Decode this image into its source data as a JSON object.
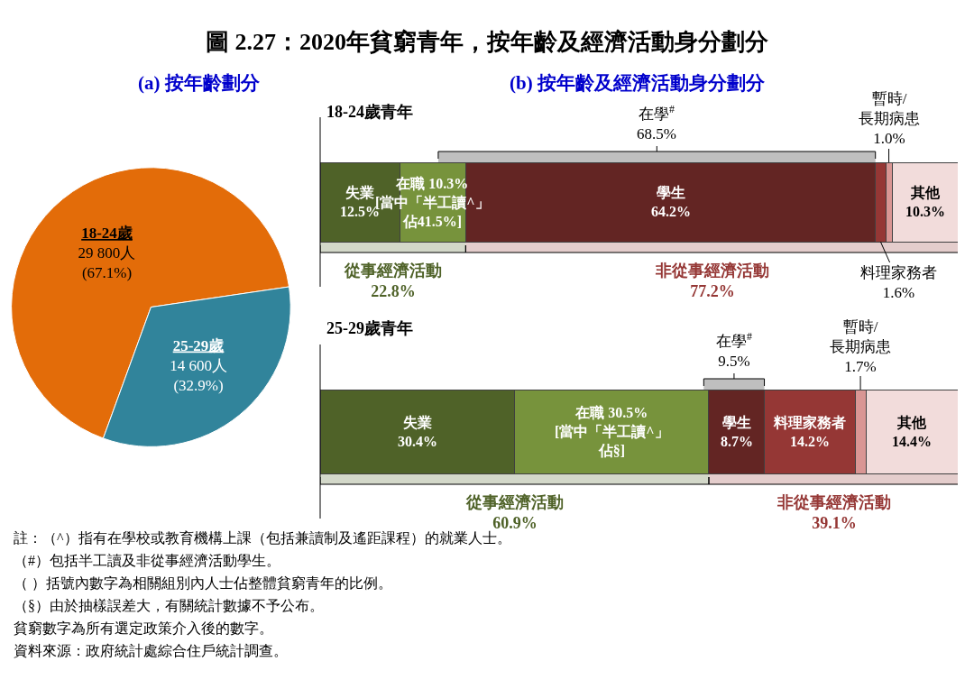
{
  "chart_data": [
    {
      "type": "pie",
      "title": "圖 2.27：2020年貧窮青年，按年齡及經濟活動身分劃分",
      "subtitle": "(a) 按年齡劃分",
      "categories": [
        "18-24歲",
        "25-29歲"
      ],
      "values": [
        29800,
        14600
      ],
      "colors": [
        "#e36c09",
        "#31849b"
      ],
      "value_labels": [
        "29 800人\n(67.1%)",
        "14 600人\n(32.9%)"
      ]
    },
    {
      "type": "bar",
      "orientation": "horizontal",
      "stacked": true,
      "subtitle": "(b) 按年齡及經濟活動身分劃分",
      "title": "18-24歲青年",
      "categories": [
        null
      ],
      "tick_labels": false,
      "series": [
        {
          "color": "#4f6228",
          "values": [
            12.5
          ],
          "value_labels": [
            "失業\n12.5%"
          ]
        },
        {
          "color": "#77933c",
          "values": [
            10.3
          ],
          "value_labels": [
            "在職 10.3%\n[當中「半工讀^」佔41.5%]"
          ]
        },
        {
          "color": "#632523",
          "values": [
            64.2
          ],
          "value_labels": [
            "學生\n64.2%"
          ]
        },
        {
          "color": "#953735",
          "values": [
            1.6
          ],
          "value_labels": [
            "料理家務者\n1.6%"
          ]
        },
        {
          "color": "#d99694",
          "values": [
            1.0
          ],
          "value_labels": [
            "暫時/\n長期病患\n1.0%"
          ]
        },
        {
          "color": "#f2dcdb",
          "values": [
            10.3
          ],
          "value_labels": [
            "其他\n10.3%"
          ]
        }
      ],
      "bands": [
        {
          "axis": "x",
          "from": 18.5,
          "to": 87.0,
          "label": "在學$^{#}$\n68.5%"
        },
        {
          "axis": "x",
          "from": 0,
          "to": 22.8,
          "label": "從事經濟活動\n22.8%",
          "color": "#4f6228"
        },
        {
          "axis": "x",
          "from": 22.8,
          "to": 100,
          "label": "非從事經濟活動\n77.2%",
          "color": "#953735"
        }
      ]
    },
    {
      "type": "bar",
      "orientation": "horizontal",
      "stacked": true,
      "title": "25-29歲青年",
      "categories": [
        null
      ],
      "tick_labels": false,
      "series": [
        {
          "color": "#4f6228",
          "values": [
            30.4
          ],
          "value_labels": [
            "失業\n30.4%"
          ]
        },
        {
          "color": "#77933c",
          "values": [
            30.5
          ],
          "value_labels": [
            "在職 30.5%\n[當中「半工讀^」佔§]"
          ]
        },
        {
          "color": "#632523",
          "values": [
            8.7
          ],
          "value_labels": [
            "學生\n8.7%"
          ]
        },
        {
          "color": "#953735",
          "values": [
            14.2
          ],
          "value_labels": [
            "料理家務者\n14.2%"
          ]
        },
        {
          "color": "#d99694",
          "values": [
            1.7
          ],
          "value_labels": [
            "暫時/\n長期病患\n1.7%"
          ]
        },
        {
          "color": "#f2dcdb",
          "values": [
            14.4
          ],
          "value_labels": [
            "其他\n14.4%"
          ]
        }
      ],
      "bands": [
        {
          "axis": "x",
          "from": 60.1,
          "to": 69.6,
          "label": "在學$^{#}$\n9.5%"
        },
        {
          "axis": "x",
          "from": 0,
          "to": 60.9,
          "label": "從事經濟活動\n60.9%",
          "color": "#4f6228"
        },
        {
          "axis": "x",
          "from": 60.9,
          "to": 100,
          "label": "非從事經濟活動\n39.1%",
          "color": "#953735"
        }
      ],
      "annotations": [
        "註：（^）指有在學校或教育機構上課（包括兼讀制及遙距課程）的就業人士。",
        "（#）包括半工讀及非從事經濟活動學生。",
        "（ ）括號內數字為相關組別內人士佔整體貧窮青年的比例。",
        "（§）由於抽樣誤差大，有關統計數據不予公布。",
        "貧窮數字為所有選定政策介入後的數字。",
        "資料來源：政府統計處綜合住戶統計調查。"
      ]
    }
  ]
}
